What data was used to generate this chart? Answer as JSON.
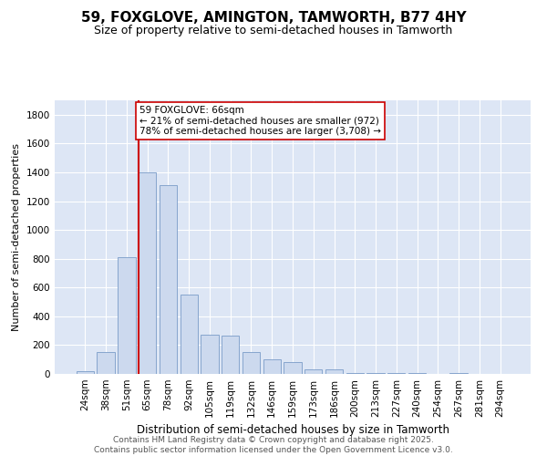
{
  "title": "59, FOXGLOVE, AMINGTON, TAMWORTH, B77 4HY",
  "subtitle": "Size of property relative to semi-detached houses in Tamworth",
  "xlabel": "Distribution of semi-detached houses by size in Tamworth",
  "ylabel": "Number of semi-detached properties",
  "categories": [
    "24sqm",
    "38sqm",
    "51sqm",
    "65sqm",
    "78sqm",
    "92sqm",
    "105sqm",
    "119sqm",
    "132sqm",
    "146sqm",
    "159sqm",
    "173sqm",
    "186sqm",
    "200sqm",
    "213sqm",
    "227sqm",
    "240sqm",
    "254sqm",
    "267sqm",
    "281sqm",
    "294sqm"
  ],
  "values": [
    20,
    150,
    810,
    1400,
    1310,
    550,
    275,
    265,
    150,
    100,
    80,
    30,
    30,
    5,
    5,
    5,
    5,
    0,
    5,
    0,
    0
  ],
  "bar_color": "#ccd9ee",
  "bar_edge_color": "#7a9cc8",
  "red_line_color": "#cc0000",
  "property_bin_index": 3,
  "annotation_text": "59 FOXGLOVE: 66sqm\n← 21% of semi-detached houses are smaller (972)\n78% of semi-detached houses are larger (3,708) →",
  "annotation_box_color": "#ffffff",
  "annotation_box_edge": "#cc0000",
  "footer_text": "Contains HM Land Registry data © Crown copyright and database right 2025.\nContains public sector information licensed under the Open Government Licence v3.0.",
  "ylim": [
    0,
    1900
  ],
  "yticks": [
    0,
    200,
    400,
    600,
    800,
    1000,
    1200,
    1400,
    1600,
    1800
  ],
  "bg_color": "#dde6f5",
  "title_fontsize": 11,
  "subtitle_fontsize": 9,
  "xlabel_fontsize": 8.5,
  "ylabel_fontsize": 8,
  "tick_fontsize": 7.5,
  "footer_fontsize": 6.5,
  "annotation_fontsize": 7.5
}
